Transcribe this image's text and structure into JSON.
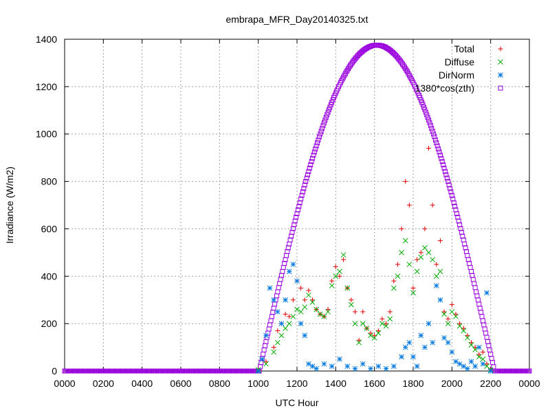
{
  "chart_data": {
    "type": "scatter",
    "title": "embrapa_MFR_Day20140325.txt",
    "xlabel": "UTC Hour",
    "ylabel": "Irradiance (W/m2)",
    "xlim": [
      0,
      24
    ],
    "ylim": [
      0,
      1400
    ],
    "grid": true,
    "legend_position": "top-right",
    "x_ticks": [
      {
        "value": 0,
        "label": "0000"
      },
      {
        "value": 2,
        "label": "0200"
      },
      {
        "value": 4,
        "label": "0400"
      },
      {
        "value": 6,
        "label": "0600"
      },
      {
        "value": 8,
        "label": "0800"
      },
      {
        "value": 10,
        "label": "1000"
      },
      {
        "value": 12,
        "label": "1200"
      },
      {
        "value": 14,
        "label": "1400"
      },
      {
        "value": 16,
        "label": "1600"
      },
      {
        "value": 18,
        "label": "1800"
      },
      {
        "value": 20,
        "label": "2000"
      },
      {
        "value": 22,
        "label": "2200"
      },
      {
        "value": 24,
        "label": "0000"
      }
    ],
    "y_ticks": [
      {
        "value": 0,
        "label": "0"
      },
      {
        "value": 200,
        "label": "200"
      },
      {
        "value": 400,
        "label": "400"
      },
      {
        "value": 600,
        "label": "600"
      },
      {
        "value": 800,
        "label": "800"
      },
      {
        "value": 1000,
        "label": "1000"
      },
      {
        "value": 1200,
        "label": "1200"
      },
      {
        "value": 1400,
        "label": "1400"
      }
    ],
    "series": [
      {
        "name": "Total",
        "marker": "plus",
        "color": "#dd0000",
        "x": [
          10.0,
          10.4,
          10.8,
          11.0,
          11.2,
          11.4,
          11.6,
          11.8,
          12.0,
          12.2,
          12.4,
          12.6,
          12.8,
          13.0,
          13.2,
          13.4,
          13.6,
          13.8,
          14.0,
          14.2,
          14.4,
          14.6,
          14.8,
          15.0,
          15.2,
          15.4,
          15.6,
          15.8,
          16.0,
          16.2,
          16.4,
          16.6,
          16.8,
          17.0,
          17.2,
          17.4,
          17.6,
          17.8,
          18.0,
          18.2,
          18.4,
          18.6,
          18.8,
          19.0,
          19.2,
          19.4,
          19.6,
          19.8,
          20.0,
          20.2,
          20.4,
          20.6,
          20.8,
          21.0,
          21.2,
          21.4,
          21.6,
          21.8,
          22.0
        ],
        "y": [
          5,
          40,
          100,
          170,
          200,
          240,
          230,
          300,
          380,
          350,
          300,
          340,
          300,
          260,
          240,
          230,
          260,
          380,
          440,
          400,
          470,
          350,
          300,
          250,
          130,
          250,
          180,
          160,
          150,
          170,
          220,
          200,
          250,
          380,
          450,
          600,
          800,
          700,
          350,
          470,
          500,
          600,
          940,
          700,
          450,
          550,
          250,
          220,
          280,
          240,
          200,
          180,
          150,
          120,
          100,
          70,
          80,
          30,
          5
        ]
      },
      {
        "name": "Diffuse",
        "marker": "cross",
        "color": "#00aa00",
        "x": [
          10.0,
          10.4,
          10.8,
          11.0,
          11.2,
          11.4,
          11.6,
          11.8,
          12.0,
          12.2,
          12.4,
          12.6,
          12.8,
          13.0,
          13.2,
          13.4,
          13.6,
          13.8,
          14.0,
          14.2,
          14.4,
          14.6,
          14.8,
          15.0,
          15.2,
          15.4,
          15.6,
          15.8,
          16.0,
          16.2,
          16.4,
          16.6,
          16.8,
          17.0,
          17.2,
          17.4,
          17.6,
          17.8,
          18.0,
          18.2,
          18.4,
          18.6,
          18.8,
          19.0,
          19.2,
          19.4,
          19.6,
          19.8,
          20.0,
          20.2,
          20.4,
          20.6,
          20.8,
          21.0,
          21.2,
          21.4,
          21.6,
          21.8,
          22.0
        ],
        "y": [
          5,
          30,
          80,
          120,
          150,
          180,
          200,
          230,
          260,
          250,
          270,
          320,
          290,
          260,
          240,
          230,
          250,
          360,
          400,
          420,
          490,
          350,
          280,
          200,
          120,
          200,
          180,
          150,
          140,
          160,
          200,
          190,
          220,
          350,
          400,
          500,
          550,
          450,
          330,
          420,
          480,
          520,
          500,
          470,
          400,
          420,
          240,
          200,
          250,
          230,
          190,
          170,
          140,
          110,
          90,
          60,
          50,
          20,
          5
        ]
      },
      {
        "name": "DirNorm",
        "marker": "star",
        "color": "#0077dd",
        "x": [
          10.0,
          10.2,
          10.4,
          10.6,
          10.8,
          11.0,
          11.2,
          11.4,
          11.6,
          11.8,
          12.0,
          12.2,
          12.4,
          12.6,
          12.8,
          13.0,
          13.4,
          13.8,
          14.2,
          14.6,
          15.0,
          15.4,
          15.8,
          16.2,
          16.6,
          17.0,
          17.4,
          17.6,
          17.8,
          18.0,
          18.2,
          18.4,
          18.6,
          18.8,
          19.0,
          19.2,
          19.4,
          19.6,
          19.8,
          20.0,
          20.2,
          20.4,
          20.6,
          20.8,
          21.0,
          21.2,
          21.4,
          21.6,
          21.8,
          22.0
        ],
        "y": [
          0,
          50,
          150,
          350,
          300,
          250,
          200,
          300,
          420,
          450,
          380,
          200,
          150,
          30,
          20,
          10,
          30,
          20,
          50,
          20,
          10,
          30,
          10,
          20,
          10,
          20,
          60,
          100,
          120,
          60,
          20,
          150,
          100,
          200,
          120,
          360,
          300,
          140,
          120,
          80,
          40,
          30,
          20,
          10,
          40,
          20,
          100,
          30,
          330,
          0
        ]
      },
      {
        "name": "1380*cos(zth)",
        "marker": "square",
        "color": "#9900dd",
        "x": [],
        "y": []
      }
    ]
  }
}
